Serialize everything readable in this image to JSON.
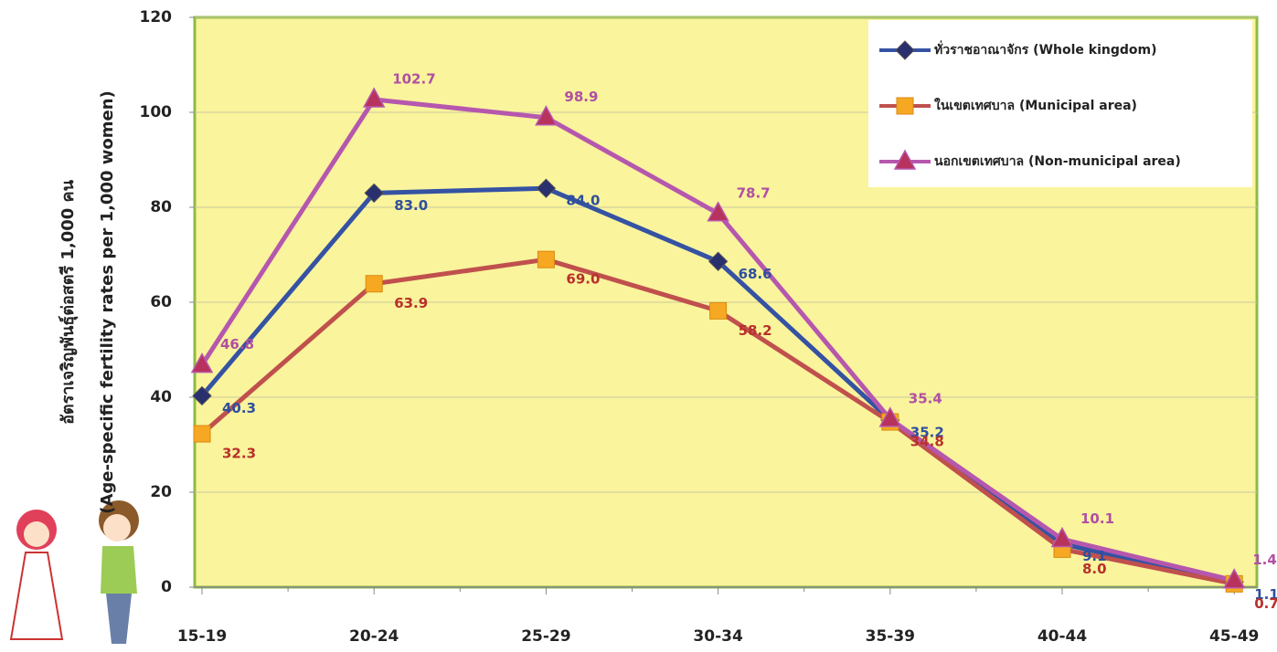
{
  "chart_data": {
    "type": "line",
    "y_label": [
      "อัตราเจริญพันธุ์ต่อสตรี 1,000 คน",
      "(Age-specific fertility rates per 1,000 women)"
    ],
    "categories": [
      "15-19",
      "20-24",
      "25-29",
      "30-34",
      "35-39",
      "40-44",
      "45-49"
    ],
    "series": [
      {
        "name": "ทั่วราชอาณาจักร (Whole kingdom)",
        "color": "#3552a3",
        "marker": "diamond",
        "marker_color": "#2a2f6e",
        "label_color": "#2e4f9e",
        "values": [
          40.3,
          83.0,
          84.0,
          68.6,
          35.2,
          9.1,
          1.1
        ],
        "value_labels": [
          "40.3",
          "83.0",
          "84.0",
          "68.6",
          "35.2",
          "9.1",
          "1.1"
        ]
      },
      {
        "name": "ในเขตเทศบาล (Municipal area)",
        "color": "#c0504d",
        "marker": "square",
        "marker_color": "#f7a823",
        "label_color": "#b8302b",
        "values": [
          32.3,
          63.9,
          69.0,
          58.2,
          34.8,
          8.0,
          0.7
        ],
        "value_labels": [
          "32.3",
          "63.9",
          "69.0",
          "58.2",
          "34.8",
          "8.0",
          "0.7"
        ]
      },
      {
        "name": "นอกเขตเทศบาล (Non-municipal area)",
        "color": "#b657ae",
        "marker": "triangle",
        "marker_color": "#b8325e",
        "label_color": "#b04fa3",
        "values": [
          46.8,
          102.7,
          98.9,
          78.7,
          35.4,
          10.1,
          1.4
        ],
        "value_labels": [
          "46.8",
          "102.7",
          "98.9",
          "78.7",
          "35.4",
          "10.1",
          "1.4"
        ]
      }
    ],
    "ylim": [
      0,
      120
    ],
    "yticks": [
      0,
      20,
      40,
      60,
      80,
      100,
      120
    ],
    "grid": true,
    "legend": "upper right"
  }
}
